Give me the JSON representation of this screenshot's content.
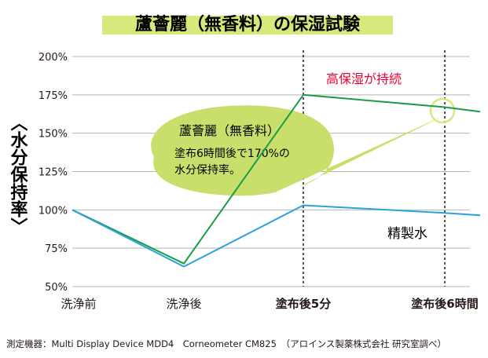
{
  "chart_data": {
    "type": "line",
    "title": "蘆薈麗（無香料）の保湿試験",
    "ylabel": "〈水分保持率〉",
    "categories": [
      "洗浄前",
      "洗浄後",
      "塗布後5分",
      "塗布後6時間"
    ],
    "yticks": [
      "200%",
      "175%",
      "150%",
      "125%",
      "100%",
      "75%",
      "50%"
    ],
    "ylim": [
      50,
      200
    ],
    "grid": true,
    "series": [
      {
        "name": "蘆薈麗（無香料）",
        "color": "#1a9c46",
        "x": [
          0,
          1,
          2,
          3,
          3.25
        ],
        "values": [
          100,
          65,
          175,
          167,
          164
        ]
      },
      {
        "name": "精製水",
        "color": "#2aa3dc",
        "x": [
          0,
          1,
          2,
          3,
          3.25
        ],
        "values": [
          100,
          63,
          103,
          98,
          96.5
        ]
      }
    ],
    "annotations": {
      "high_moisture": "高保湿が持続",
      "bubble_title": "蘆薈麗（無香料）",
      "bubble_line1": "塗布6時間後で170%の",
      "bubble_line2": "水分保持率。",
      "water_label": "精製水"
    },
    "highlight_color": "#e60033"
  },
  "footer": "測定機器：Multi Display Device MDD4　Corneometer CM825　（アロインス製薬株式会社 研究室調べ）"
}
